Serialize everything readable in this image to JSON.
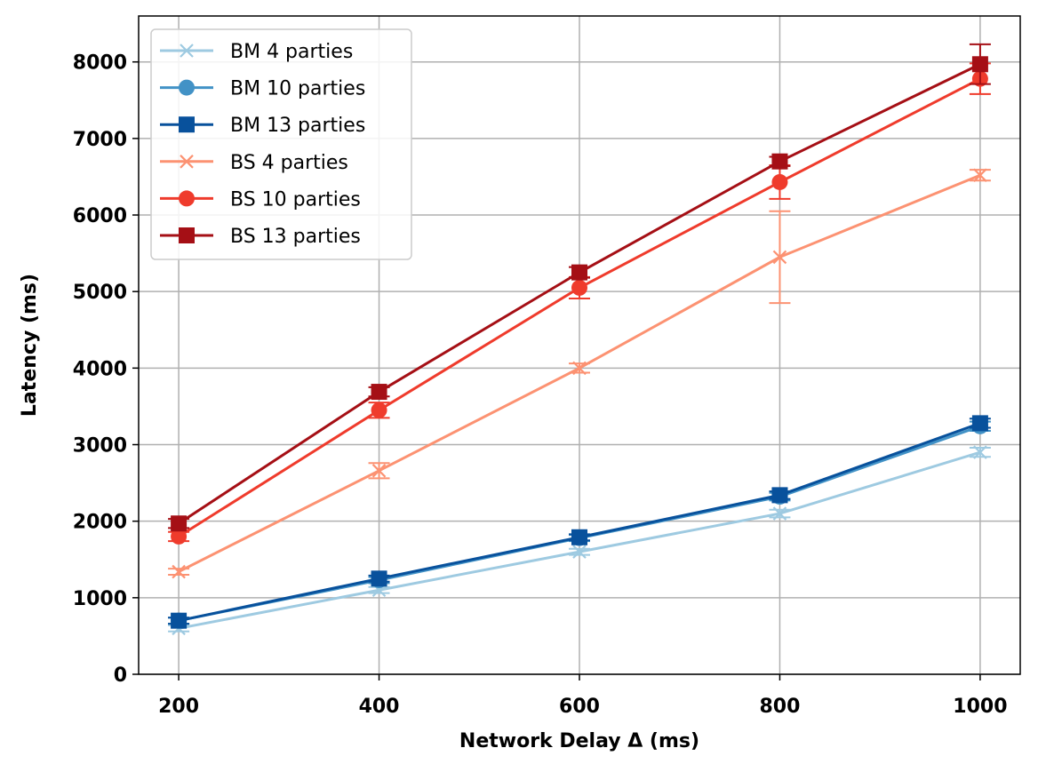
{
  "chart_data": {
    "type": "line",
    "title": "",
    "xlabel": "Network Delay Δ (ms)",
    "ylabel": "Latency (ms)",
    "x": [
      200,
      400,
      600,
      800,
      1000
    ],
    "xlim": [
      160,
      1040
    ],
    "ylim": [
      0,
      8600
    ],
    "xticks": [
      200,
      400,
      600,
      800,
      1000
    ],
    "yticks": [
      0,
      1000,
      2000,
      3000,
      4000,
      5000,
      6000,
      7000,
      8000
    ],
    "grid": true,
    "legend_position": "upper-left",
    "series": [
      {
        "name": "BM 4 parties",
        "color": "#9ecae1",
        "marker": "x",
        "values": [
          600,
          1100,
          1600,
          2100,
          2900
        ],
        "errors": [
          40,
          40,
          40,
          50,
          60
        ]
      },
      {
        "name": "BM 10 parties",
        "color": "#4292c6",
        "marker": "circle",
        "values": [
          700,
          1230,
          1780,
          2320,
          3240
        ],
        "errors": [
          40,
          40,
          40,
          50,
          60
        ]
      },
      {
        "name": "BM 13 parties",
        "color": "#08519c",
        "marker": "square",
        "values": [
          700,
          1250,
          1790,
          2340,
          3280
        ],
        "errors": [
          40,
          40,
          40,
          50,
          60
        ]
      },
      {
        "name": "BS 4 parties",
        "color": "#fc9272",
        "marker": "x",
        "values": [
          1340,
          2660,
          4000,
          5450,
          6520
        ],
        "errors": [
          40,
          100,
          60,
          600,
          70
        ]
      },
      {
        "name": "BS 10 parties",
        "color": "#ef3b2c",
        "marker": "circle",
        "values": [
          1800,
          3450,
          5050,
          6430,
          7780
        ],
        "errors": [
          60,
          100,
          140,
          220,
          200
        ]
      },
      {
        "name": "BS 13 parties",
        "color": "#a50f15",
        "marker": "square",
        "values": [
          1970,
          3690,
          5250,
          6700,
          7970
        ],
        "errors": [
          60,
          60,
          70,
          60,
          260
        ]
      }
    ]
  }
}
